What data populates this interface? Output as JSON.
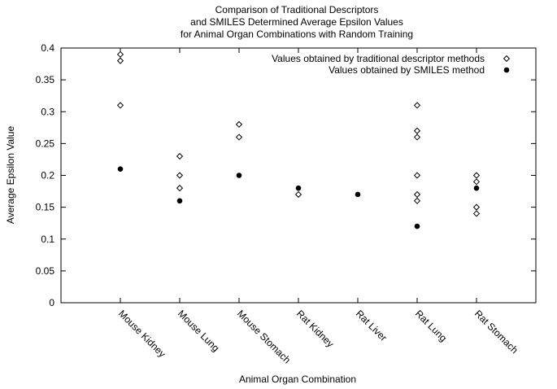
{
  "chart_data": {
    "type": "scatter",
    "title": [
      "Comparison of Traditional Descriptors",
      "and SMILES Determined Average Epsilon Values",
      "for Animal Organ Combinations with Random Training"
    ],
    "xlabel": "Animal Organ Combination",
    "ylabel": "Average Epsilon Value",
    "ylim": [
      0,
      0.4
    ],
    "yticks": [
      "0",
      "0.05",
      "0.1",
      "0.15",
      "0.2",
      "0.25",
      "0.3",
      "0.35",
      "0.4"
    ],
    "categories": [
      "Mouse Kidney",
      "Mouse Lung",
      "Mouse Stomach",
      "Rat Kidney",
      "Rat Liver",
      "Rat Lung",
      "Rat Stomach"
    ],
    "grid": false,
    "legend_position": "top-right",
    "series": [
      {
        "name": "Values obtained by traditional descriptor methods",
        "marker": "diamond-open",
        "color": "#000000",
        "points": [
          {
            "x": "Mouse Kidney",
            "y": 0.39
          },
          {
            "x": "Mouse Kidney",
            "y": 0.38
          },
          {
            "x": "Mouse Kidney",
            "y": 0.31
          },
          {
            "x": "Mouse Lung",
            "y": 0.23
          },
          {
            "x": "Mouse Lung",
            "y": 0.2
          },
          {
            "x": "Mouse Lung",
            "y": 0.18
          },
          {
            "x": "Mouse Stomach",
            "y": 0.28
          },
          {
            "x": "Mouse Stomach",
            "y": 0.26
          },
          {
            "x": "Rat Kidney",
            "y": 0.17
          },
          {
            "x": "Rat Lung",
            "y": 0.31
          },
          {
            "x": "Rat Lung",
            "y": 0.27
          },
          {
            "x": "Rat Lung",
            "y": 0.26
          },
          {
            "x": "Rat Lung",
            "y": 0.2
          },
          {
            "x": "Rat Lung",
            "y": 0.17
          },
          {
            "x": "Rat Lung",
            "y": 0.16
          },
          {
            "x": "Rat Stomach",
            "y": 0.2
          },
          {
            "x": "Rat Stomach",
            "y": 0.19
          },
          {
            "x": "Rat Stomach",
            "y": 0.15
          },
          {
            "x": "Rat Stomach",
            "y": 0.14
          }
        ]
      },
      {
        "name": "Values obtained by SMILES method",
        "marker": "circle-filled",
        "color": "#000000",
        "points": [
          {
            "x": "Mouse Kidney",
            "y": 0.21
          },
          {
            "x": "Mouse Lung",
            "y": 0.16
          },
          {
            "x": "Mouse Stomach",
            "y": 0.2
          },
          {
            "x": "Rat Kidney",
            "y": 0.18
          },
          {
            "x": "Rat Liver",
            "y": 0.17
          },
          {
            "x": "Rat Lung",
            "y": 0.12
          },
          {
            "x": "Rat Stomach",
            "y": 0.18
          }
        ]
      }
    ]
  }
}
